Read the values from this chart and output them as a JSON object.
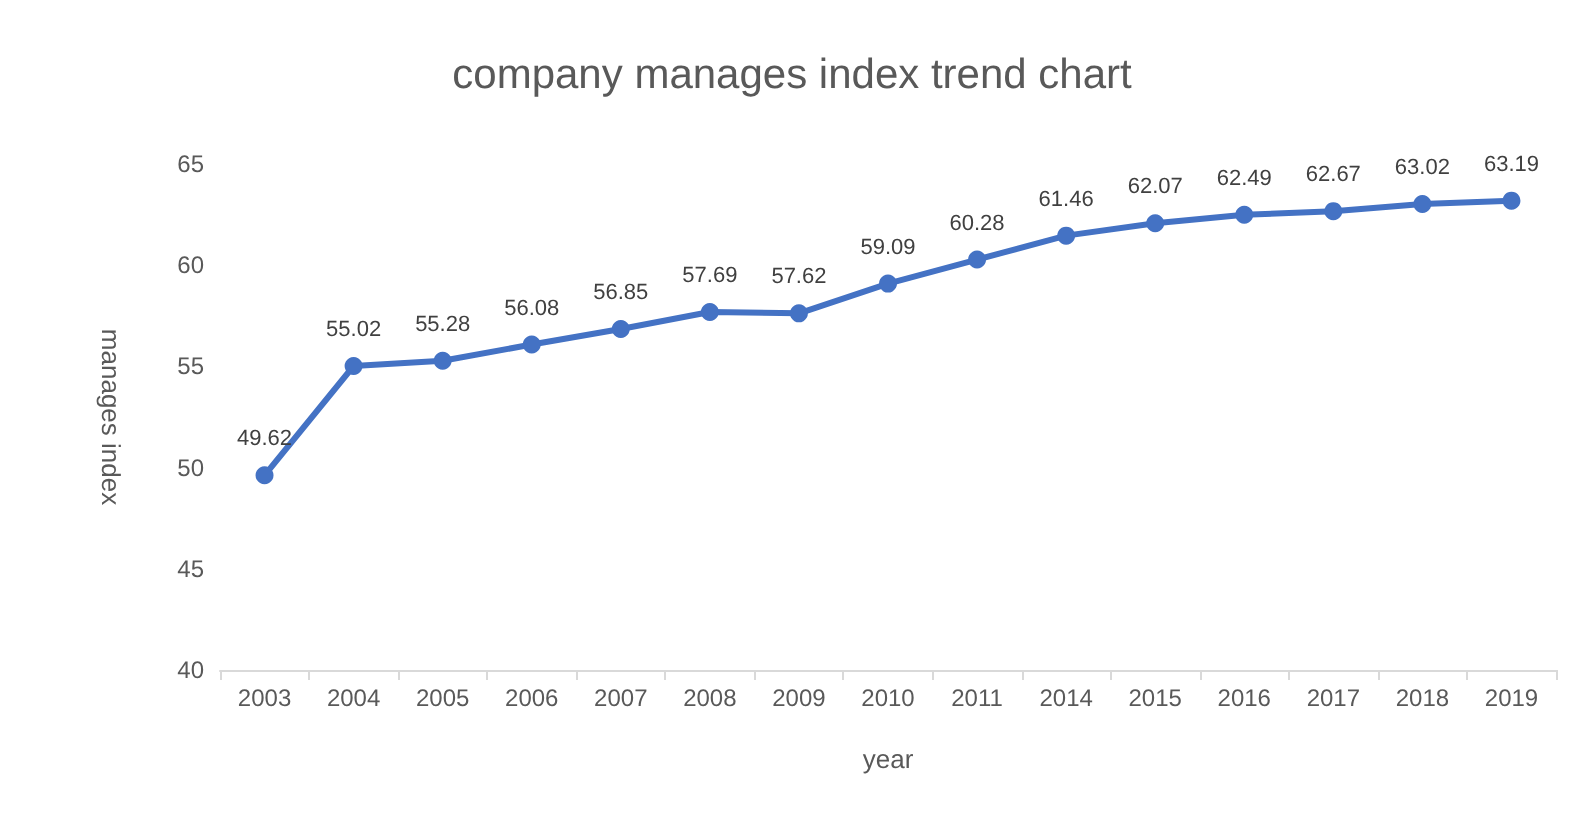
{
  "chart_data": {
    "type": "line",
    "title": "company manages index trend chart",
    "xlabel": "year",
    "ylabel": "manages index",
    "categories": [
      "2003",
      "2004",
      "2005",
      "2006",
      "2007",
      "2008",
      "2009",
      "2010",
      "2011",
      "2014",
      "2015",
      "2016",
      "2017",
      "2018",
      "2019"
    ],
    "series": [
      {
        "color": "#4472c4",
        "values": [
          49.62,
          55.02,
          55.28,
          56.08,
          56.85,
          57.69,
          57.62,
          59.09,
          60.28,
          61.46,
          62.07,
          62.49,
          62.67,
          63.02,
          63.19
        ]
      }
    ],
    "ylim": [
      40,
      65
    ],
    "yticks": [
      40,
      45,
      50,
      55,
      60,
      65
    ],
    "grid": false,
    "marker": "circle",
    "line_style": "solid",
    "data_labels": true
  }
}
